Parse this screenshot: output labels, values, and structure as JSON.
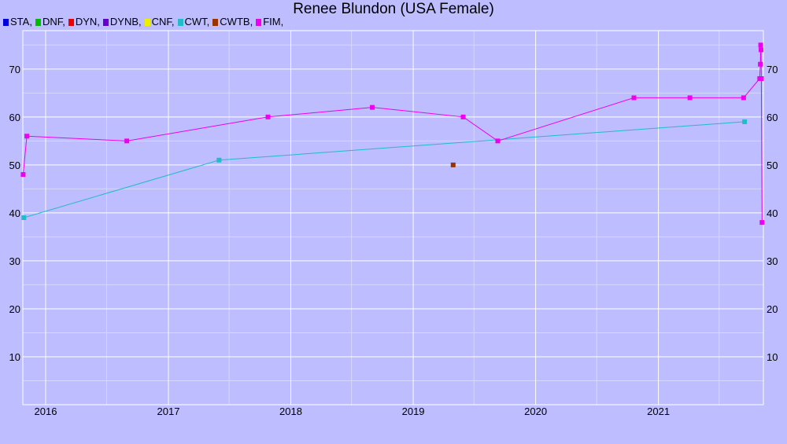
{
  "chart_data": {
    "type": "line",
    "title": "Renee Blundon (USA Female)",
    "xlabel": "",
    "ylabel": "",
    "x_axis": {
      "type": "date",
      "range": [
        "2015-10-25",
        "2021-11-10"
      ],
      "ticks": [
        "2016",
        "2017",
        "2018",
        "2019",
        "2020",
        "2021"
      ]
    },
    "y_axis": {
      "range": [
        0,
        78
      ],
      "ticks": [
        10,
        20,
        30,
        40,
        50,
        60,
        70
      ],
      "labels_on": "left-and-right"
    },
    "grid": true,
    "legend_position": "top-left",
    "background": "#bdbdff",
    "legend": [
      {
        "name": "STA",
        "color": "#0000dd"
      },
      {
        "name": "DNF",
        "color": "#00bb00"
      },
      {
        "name": "DYN",
        "color": "#ee0000"
      },
      {
        "name": "DYNB",
        "color": "#6600cc"
      },
      {
        "name": "CNF",
        "color": "#eeee00"
      },
      {
        "name": "CWT",
        "color": "#22bbcc"
      },
      {
        "name": "CWTB",
        "color": "#993300"
      },
      {
        "name": "FIM",
        "color": "#ee00ee"
      }
    ],
    "series": [
      {
        "name": "CWT",
        "color": "#22bbcc",
        "points": [
          {
            "x": "2015-10-28",
            "y": 39
          },
          {
            "x": "2017-06-01",
            "y": 51
          },
          {
            "x": "2021-09-15",
            "y": 59
          }
        ]
      },
      {
        "name": "CWTB",
        "color": "#993300",
        "points": [
          {
            "x": "2019-04-30",
            "y": 50
          }
        ]
      },
      {
        "name": "FIM",
        "color": "#ee00ee",
        "points": [
          {
            "x": "2015-10-26",
            "y": 48
          },
          {
            "x": "2015-11-06",
            "y": 56
          },
          {
            "x": "2016-08-30",
            "y": 55
          },
          {
            "x": "2017-10-25",
            "y": 60
          },
          {
            "x": "2018-09-01",
            "y": 62
          },
          {
            "x": "2019-05-30",
            "y": 60
          },
          {
            "x": "2019-09-10",
            "y": 55
          },
          {
            "x": "2020-10-20",
            "y": 64
          },
          {
            "x": "2021-04-05",
            "y": 64
          },
          {
            "x": "2021-09-12",
            "y": 64
          },
          {
            "x": "2021-10-30",
            "y": 68
          },
          {
            "x": "2021-11-01",
            "y": 71
          },
          {
            "x": "2021-11-02",
            "y": 75
          },
          {
            "x": "2021-11-03",
            "y": 74
          },
          {
            "x": "2021-11-04",
            "y": 68
          },
          {
            "x": "2021-11-06",
            "y": 38
          }
        ]
      }
    ]
  }
}
